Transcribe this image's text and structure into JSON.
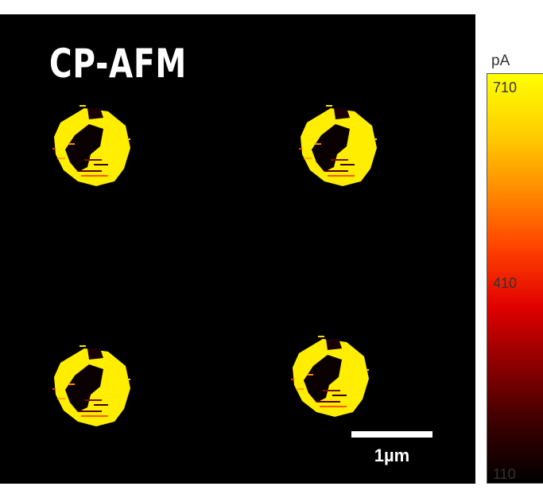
{
  "image": {
    "title": "CP-AFM",
    "scale_bar_label": "1µm",
    "background_color": "#000000",
    "features": "four circular conductive pads in a 2x2 grid, bright yellow with dark interior patches"
  },
  "colorbar": {
    "unit": "pA",
    "ticks": {
      "max": "710",
      "mid": "410",
      "min": "110"
    },
    "colormap": [
      "#000000",
      "#3a0000",
      "#8b0000",
      "#e00000",
      "#ff4000",
      "#ff8c00",
      "#ffd000",
      "#ffff00"
    ]
  }
}
